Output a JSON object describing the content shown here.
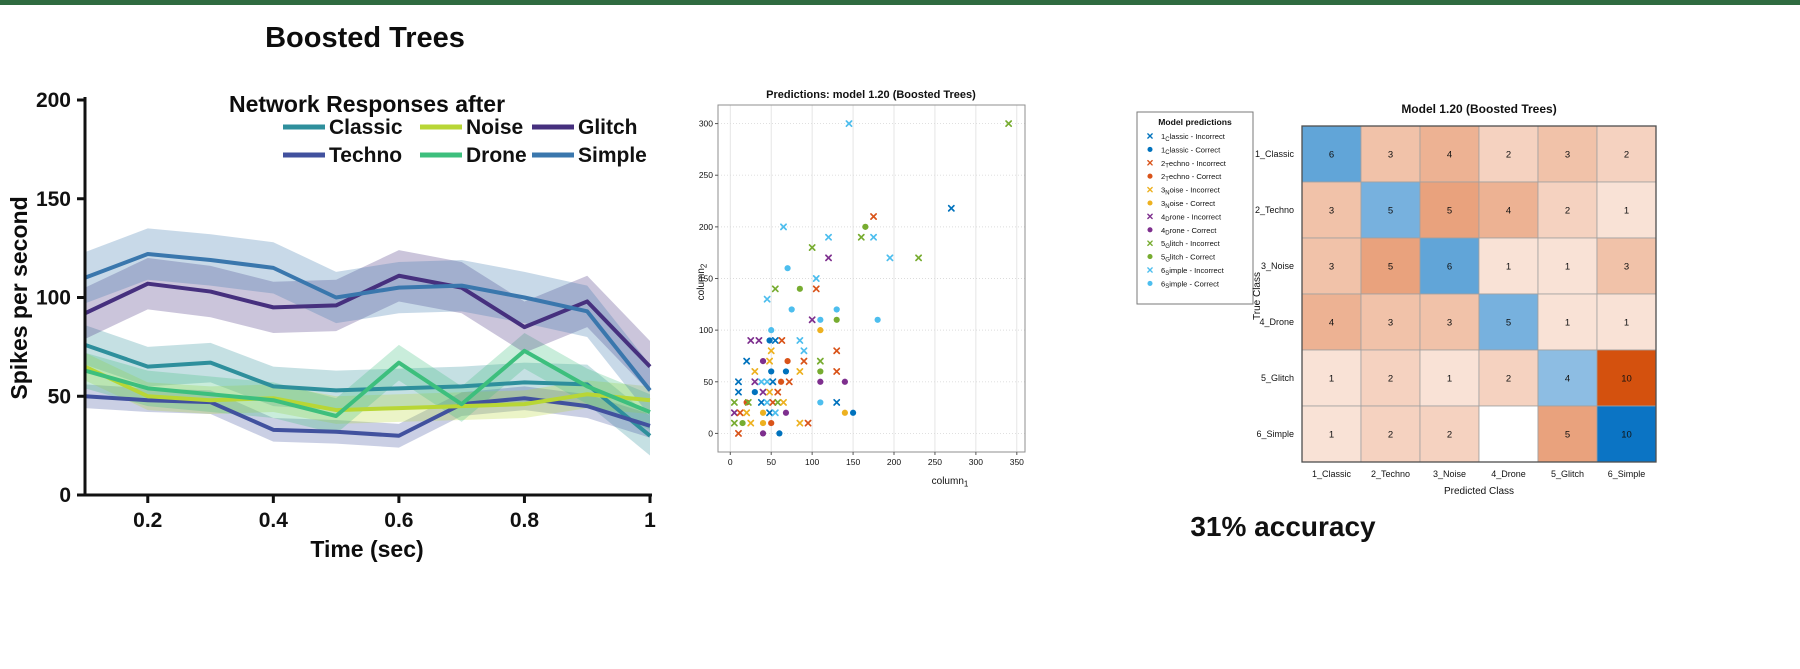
{
  "page": {
    "top_bar_color": "#2f6b40"
  },
  "chart_data": [
    {
      "type": "line",
      "title": "Boosted Trees",
      "subtitle": "Network Responses after",
      "xlabel": "Time (sec)",
      "ylabel": "Spikes per second",
      "xlim": [
        0.1,
        1.0
      ],
      "ylim": [
        0,
        200
      ],
      "x": [
        0.1,
        0.2,
        0.3,
        0.4,
        0.5,
        0.6,
        0.7,
        0.8,
        0.9,
        1.0
      ],
      "xtick_labels": [
        "0.2",
        "0.4",
        "0.6",
        "0.8",
        "1"
      ],
      "xtick_values": [
        0.2,
        0.4,
        0.6,
        0.8,
        1
      ],
      "yticks": [
        0,
        50,
        100,
        150,
        200
      ],
      "grid": false,
      "legend_position": "top-inside",
      "legend_rows": [
        [
          "Classic",
          "Noise",
          "Glitch"
        ],
        [
          "Techno",
          "Drone",
          "Simple"
        ]
      ],
      "series": [
        {
          "name": "Classic",
          "color": "#2e8f9c",
          "band": 10,
          "values": [
            76,
            65,
            67,
            55,
            53,
            54,
            55,
            57,
            56,
            30
          ]
        },
        {
          "name": "Techno",
          "color": "#41519e",
          "band": 6,
          "values": [
            50,
            48,
            47,
            33,
            32,
            30,
            46,
            49,
            45,
            35
          ]
        },
        {
          "name": "Noise",
          "color": "#b8d636",
          "band": 7,
          "values": [
            65,
            50,
            48,
            49,
            43,
            44,
            45,
            46,
            51,
            48
          ]
        },
        {
          "name": "Drone",
          "color": "#3dbf7d",
          "band": 9,
          "values": [
            63,
            54,
            51,
            48,
            40,
            67,
            46,
            73,
            55,
            42
          ]
        },
        {
          "name": "Glitch",
          "color": "#46307e",
          "band": 13,
          "values": [
            92,
            107,
            103,
            95,
            96,
            111,
            105,
            85,
            98,
            65
          ]
        },
        {
          "name": "Simple",
          "color": "#3a77ad",
          "band": 13,
          "values": [
            110,
            122,
            119,
            115,
            100,
            105,
            106,
            100,
            93,
            53
          ]
        }
      ]
    },
    {
      "type": "scatter",
      "title": "Predictions: model 1.20 (Boosted Trees)",
      "xlabel": {
        "base": "column",
        "sub": "1"
      },
      "ylabel": {
        "base": "column",
        "sub": "2"
      },
      "xticks": [
        0,
        50,
        100,
        150,
        200,
        250,
        300,
        350
      ],
      "yticks": [
        0,
        50,
        100,
        150,
        200,
        250,
        300
      ],
      "xlim": [
        -15,
        360
      ],
      "ylim": [
        -18,
        318
      ],
      "grid": true,
      "class_colors": [
        "#0072BD",
        "#D95319",
        "#EDB120",
        "#7E2F8E",
        "#77AC30",
        "#4DBEEE"
      ],
      "legend": {
        "title": "Model predictions",
        "entries": [
          {
            "num": "1",
            "sub": "C",
            "rest": "lassic - Incorrect",
            "marker": "x",
            "class": 1
          },
          {
            "num": "1",
            "sub": "C",
            "rest": "lassic - Correct",
            "marker": "o",
            "class": 1
          },
          {
            "num": "2",
            "sub": "T",
            "rest": "echno - Incorrect",
            "marker": "x",
            "class": 2
          },
          {
            "num": "2",
            "sub": "T",
            "rest": "echno - Correct",
            "marker": "o",
            "class": 2
          },
          {
            "num": "3",
            "sub": "N",
            "rest": "oise - Incorrect",
            "marker": "x",
            "class": 3
          },
          {
            "num": "3",
            "sub": "N",
            "rest": "oise - Correct",
            "marker": "o",
            "class": 3
          },
          {
            "num": "4",
            "sub": "D",
            "rest": "rone - Incorrect",
            "marker": "x",
            "class": 4
          },
          {
            "num": "4",
            "sub": "D",
            "rest": "rone - Correct",
            "marker": "o",
            "class": 4
          },
          {
            "num": "5",
            "sub": "G",
            "rest": "litch - Incorrect",
            "marker": "x",
            "class": 5
          },
          {
            "num": "5",
            "sub": "G",
            "rest": "litch - Correct",
            "marker": "o",
            "class": 5
          },
          {
            "num": "6",
            "sub": "S",
            "rest": "imple - Incorrect",
            "marker": "x",
            "class": 6
          },
          {
            "num": "6",
            "sub": "S",
            "rest": "imple - Correct",
            "marker": "o",
            "class": 6
          }
        ]
      },
      "points": [
        [
          145,
          300,
          6,
          "x"
        ],
        [
          340,
          300,
          5,
          "x"
        ],
        [
          270,
          218,
          1,
          "x"
        ],
        [
          65,
          200,
          6,
          "x"
        ],
        [
          175,
          210,
          2,
          "x"
        ],
        [
          165,
          200,
          5,
          "o"
        ],
        [
          160,
          190,
          5,
          "x"
        ],
        [
          175,
          190,
          6,
          "x"
        ],
        [
          120,
          190,
          6,
          "x"
        ],
        [
          100,
          180,
          5,
          "x"
        ],
        [
          120,
          170,
          4,
          "x"
        ],
        [
          195,
          170,
          6,
          "x"
        ],
        [
          230,
          170,
          5,
          "x"
        ],
        [
          70,
          160,
          6,
          "o"
        ],
        [
          105,
          150,
          6,
          "x"
        ],
        [
          55,
          140,
          5,
          "x"
        ],
        [
          85,
          140,
          5,
          "o"
        ],
        [
          105,
          140,
          2,
          "x"
        ],
        [
          45,
          130,
          6,
          "x"
        ],
        [
          75,
          120,
          6,
          "o"
        ],
        [
          130,
          120,
          6,
          "o"
        ],
        [
          100,
          110,
          4,
          "x"
        ],
        [
          110,
          110,
          6,
          "o"
        ],
        [
          130,
          110,
          5,
          "o"
        ],
        [
          180,
          110,
          6,
          "o"
        ],
        [
          50,
          100,
          6,
          "o"
        ],
        [
          110,
          100,
          3,
          "o"
        ],
        [
          25,
          90,
          4,
          "x"
        ],
        [
          35,
          90,
          4,
          "x"
        ],
        [
          48,
          90,
          1,
          "o"
        ],
        [
          55,
          90,
          1,
          "x"
        ],
        [
          63,
          90,
          2,
          "x"
        ],
        [
          85,
          90,
          6,
          "x"
        ],
        [
          50,
          80,
          3,
          "x"
        ],
        [
          90,
          80,
          6,
          "x"
        ],
        [
          130,
          80,
          2,
          "x"
        ],
        [
          20,
          70,
          1,
          "x"
        ],
        [
          40,
          70,
          4,
          "o"
        ],
        [
          48,
          70,
          3,
          "x"
        ],
        [
          70,
          70,
          2,
          "o"
        ],
        [
          90,
          70,
          2,
          "x"
        ],
        [
          110,
          70,
          5,
          "x"
        ],
        [
          30,
          60,
          3,
          "x"
        ],
        [
          50,
          60,
          1,
          "o"
        ],
        [
          68,
          60,
          1,
          "o"
        ],
        [
          85,
          60,
          3,
          "x"
        ],
        [
          110,
          60,
          5,
          "o"
        ],
        [
          130,
          60,
          2,
          "x"
        ],
        [
          10,
          50,
          1,
          "x"
        ],
        [
          30,
          50,
          4,
          "x"
        ],
        [
          38,
          50,
          6,
          "x"
        ],
        [
          45,
          50,
          6,
          "x"
        ],
        [
          52,
          50,
          1,
          "x"
        ],
        [
          62,
          50,
          2,
          "o"
        ],
        [
          72,
          50,
          2,
          "x"
        ],
        [
          110,
          50,
          4,
          "o"
        ],
        [
          140,
          50,
          4,
          "o"
        ],
        [
          10,
          40,
          1,
          "x"
        ],
        [
          30,
          40,
          1,
          "o"
        ],
        [
          40,
          40,
          4,
          "x"
        ],
        [
          48,
          40,
          3,
          "x"
        ],
        [
          58,
          40,
          2,
          "x"
        ],
        [
          5,
          30,
          5,
          "x"
        ],
        [
          20,
          30,
          2,
          "o"
        ],
        [
          22,
          30,
          5,
          "x"
        ],
        [
          38,
          30,
          1,
          "x"
        ],
        [
          45,
          30,
          6,
          "x"
        ],
        [
          52,
          30,
          2,
          "x"
        ],
        [
          58,
          30,
          5,
          "x"
        ],
        [
          65,
          30,
          3,
          "x"
        ],
        [
          110,
          30,
          6,
          "o"
        ],
        [
          130,
          30,
          1,
          "x"
        ],
        [
          5,
          20,
          4,
          "x"
        ],
        [
          12,
          20,
          2,
          "x"
        ],
        [
          20,
          20,
          3,
          "x"
        ],
        [
          40,
          20,
          3,
          "o"
        ],
        [
          48,
          20,
          1,
          "x"
        ],
        [
          55,
          20,
          6,
          "x"
        ],
        [
          68,
          20,
          4,
          "o"
        ],
        [
          140,
          20,
          3,
          "o"
        ],
        [
          150,
          20,
          1,
          "o"
        ],
        [
          5,
          10,
          5,
          "x"
        ],
        [
          15,
          10,
          5,
          "o"
        ],
        [
          25,
          10,
          3,
          "x"
        ],
        [
          40,
          10,
          3,
          "o"
        ],
        [
          50,
          10,
          2,
          "o"
        ],
        [
          85,
          10,
          3,
          "x"
        ],
        [
          95,
          10,
          2,
          "x"
        ],
        [
          10,
          0,
          2,
          "x"
        ],
        [
          40,
          0,
          4,
          "o"
        ],
        [
          60,
          0,
          1,
          "o"
        ]
      ]
    },
    {
      "type": "heatmap",
      "title": "Model 1.20 (Boosted Trees)",
      "ylabel": "True Class",
      "xlabel": "Predicted Class",
      "classes": [
        "1_Classic",
        "2_Techno",
        "3_Noise",
        "4_Drone",
        "5_Glitch",
        "6_Simple"
      ],
      "matrix": [
        [
          6,
          3,
          4,
          2,
          3,
          2
        ],
        [
          3,
          5,
          5,
          4,
          2,
          1
        ],
        [
          3,
          5,
          6,
          1,
          1,
          3
        ],
        [
          4,
          3,
          3,
          5,
          1,
          1
        ],
        [
          1,
          2,
          1,
          2,
          4,
          10
        ],
        [
          1,
          2,
          2,
          0,
          5,
          10
        ]
      ],
      "accuracy": "31% accuracy",
      "colors": {
        "diag_low": "#e3eef7",
        "diag_high": "#0b74c4",
        "off_low": "#fdf2ec",
        "off_high": "#d4510e",
        "zero": "#ffffff"
      }
    }
  ]
}
